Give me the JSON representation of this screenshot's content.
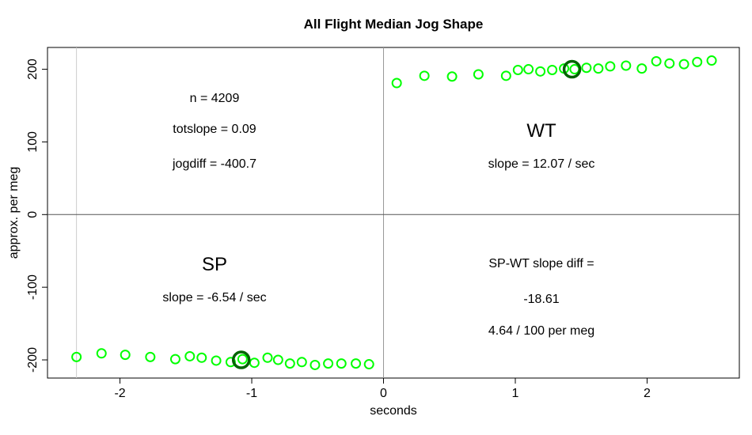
{
  "chart_data": {
    "type": "scatter",
    "title": "All Flight Median Jog Shape",
    "xlabel": "seconds",
    "ylabel": "approx. per meg",
    "xlim": [
      -2.55,
      2.7
    ],
    "ylim": [
      -225,
      230
    ],
    "x_ticks": [
      -2,
      -1,
      0,
      1,
      2
    ],
    "y_ticks": [
      -200,
      -100,
      0,
      100,
      200
    ],
    "reference_lines": {
      "vertical": [
        0,
        -2.33
      ],
      "horizontal": [
        0
      ]
    },
    "grid": false,
    "point_color": "#00ff00",
    "highlight_color": "#006400",
    "series": [
      {
        "x": [
          -2.33,
          -2.14,
          -1.96,
          -1.77,
          -1.58,
          -1.47,
          -1.38,
          -1.27,
          -1.16,
          -1.07,
          -0.98,
          -0.88,
          -0.8,
          -0.71,
          -0.62,
          -0.52,
          -0.42,
          -0.32,
          -0.21,
          -0.11
        ],
        "y": [
          -196,
          -191,
          -193,
          -196,
          -199,
          -195,
          -197,
          -201,
          -203,
          -199,
          -204,
          -197,
          -200,
          -205,
          -203,
          -207,
          -205,
          -205,
          -205,
          -206
        ]
      },
      {
        "x": [
          0.1,
          0.31,
          0.52,
          0.72,
          0.93,
          1.02,
          1.1,
          1.19,
          1.28,
          1.37,
          1.45,
          1.54,
          1.63,
          1.72,
          1.84,
          1.96,
          2.07,
          2.17,
          2.28,
          2.38,
          2.49
        ],
        "y": [
          181,
          191,
          190,
          193,
          191,
          199,
          200,
          197,
          199,
          201,
          200,
          202,
          201,
          204,
          205,
          201,
          211,
          208,
          207,
          210,
          212
        ]
      }
    ],
    "highlights": [
      {
        "x": -1.08,
        "y": -200
      },
      {
        "x": 1.43,
        "y": 200
      }
    ],
    "annotations": {
      "n": "n = 4209",
      "totslope": "totslope = 0.09",
      "jogdiff": "jogdiff = -400.7",
      "wt_label": "WT",
      "wt_slope": "slope = 12.07 / sec",
      "sp_label": "SP",
      "sp_slope": "slope = -6.54 / sec",
      "diff_label": "SP-WT slope diff =",
      "diff_value": "-18.61",
      "diff_permeg": "4.64 / 100 per meg"
    }
  }
}
